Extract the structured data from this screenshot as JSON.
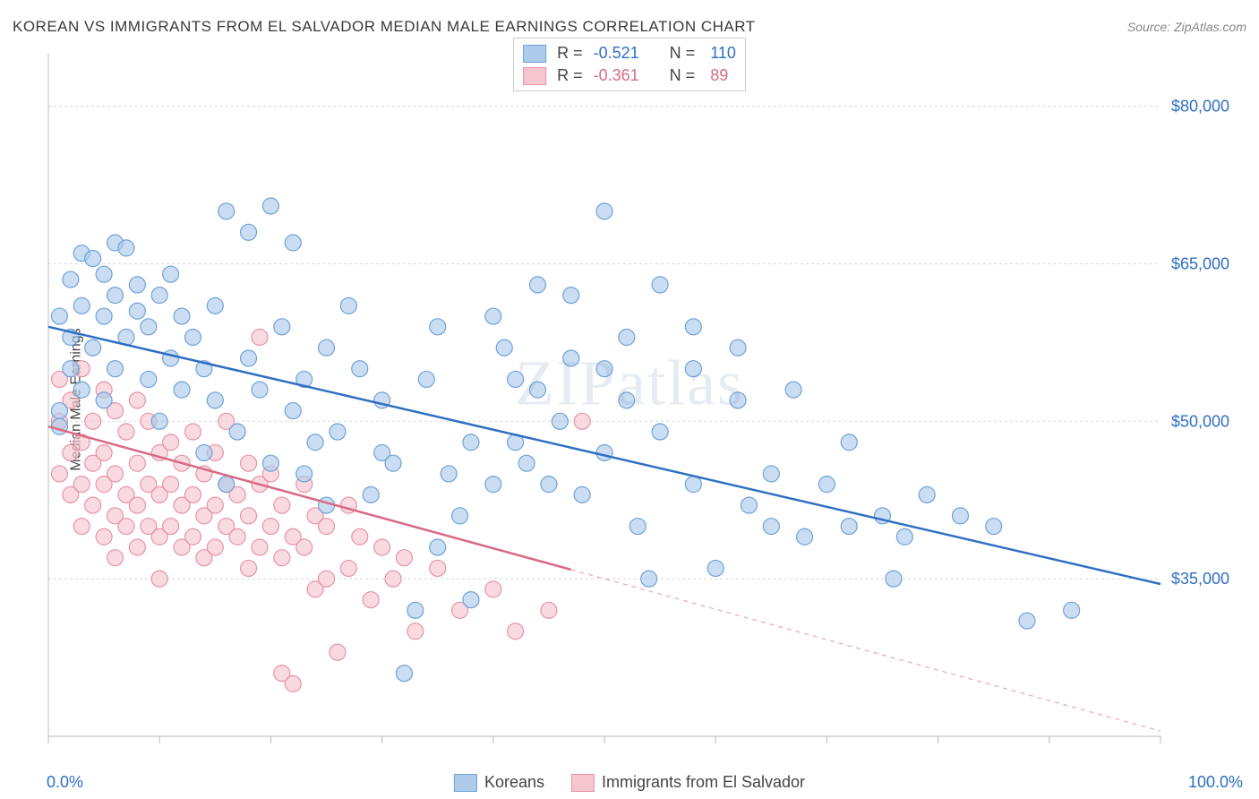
{
  "header": {
    "title": "KOREAN VS IMMIGRANTS FROM EL SALVADOR MEDIAN MALE EARNINGS CORRELATION CHART",
    "source": "Source: ZipAtlas.com"
  },
  "watermark": "ZIPatlas",
  "ylabel": "Median Male Earnings",
  "chart": {
    "type": "scatter",
    "xlim": [
      0,
      100
    ],
    "ylim": [
      20000,
      85000
    ],
    "x_axis_left_label": "0.0%",
    "x_axis_right_label": "100.0%",
    "y_ticks": [
      35000,
      50000,
      65000,
      80000
    ],
    "y_tick_labels": [
      "$35,000",
      "$50,000",
      "$65,000",
      "$80,000"
    ],
    "x_ticks": [
      0,
      10,
      20,
      30,
      40,
      50,
      60,
      70,
      80,
      90,
      100
    ],
    "grid_color": "#d8d8d8",
    "background_color": "#ffffff",
    "axis_color": "#bbbbbb",
    "marker_radius": 9,
    "marker_stroke_width": 1.2,
    "line_width": 2.5,
    "series": [
      {
        "name": "Koreans",
        "color_fill": "#aecbeb",
        "color_stroke": "#6fa3d8",
        "line_color": "#2f6fc2",
        "text_color": "#2f6fc2",
        "R": "-0.521",
        "N": "110",
        "regression": {
          "x1": 0,
          "y1": 59000,
          "x2": 100,
          "y2": 34500,
          "solid_until_x": 100
        },
        "points": [
          [
            1,
            60000
          ],
          [
            1,
            51000
          ],
          [
            1,
            49500
          ],
          [
            2,
            58000
          ],
          [
            2,
            55000
          ],
          [
            2,
            63500
          ],
          [
            3,
            66000
          ],
          [
            3,
            61000
          ],
          [
            3,
            53000
          ],
          [
            4,
            57000
          ],
          [
            4,
            65500
          ],
          [
            5,
            64000
          ],
          [
            5,
            60000
          ],
          [
            5,
            52000
          ],
          [
            6,
            55000
          ],
          [
            6,
            67000
          ],
          [
            6,
            62000
          ],
          [
            7,
            66500
          ],
          [
            7,
            58000
          ],
          [
            8,
            63000
          ],
          [
            8,
            60500
          ],
          [
            9,
            54000
          ],
          [
            9,
            59000
          ],
          [
            10,
            62000
          ],
          [
            10,
            50000
          ],
          [
            11,
            56000
          ],
          [
            11,
            64000
          ],
          [
            12,
            53000
          ],
          [
            12,
            60000
          ],
          [
            13,
            58000
          ],
          [
            14,
            55000
          ],
          [
            14,
            47000
          ],
          [
            15,
            61000
          ],
          [
            15,
            52000
          ],
          [
            16,
            70000
          ],
          [
            16,
            44000
          ],
          [
            17,
            49000
          ],
          [
            18,
            56000
          ],
          [
            18,
            68000
          ],
          [
            19,
            53000
          ],
          [
            20,
            70500
          ],
          [
            20,
            46000
          ],
          [
            21,
            59000
          ],
          [
            22,
            51000
          ],
          [
            22,
            67000
          ],
          [
            23,
            45000
          ],
          [
            23,
            54000
          ],
          [
            24,
            48000
          ],
          [
            25,
            57000
          ],
          [
            25,
            42000
          ],
          [
            26,
            49000
          ],
          [
            27,
            61000
          ],
          [
            28,
            55000
          ],
          [
            29,
            43000
          ],
          [
            30,
            47000
          ],
          [
            30,
            52000
          ],
          [
            31,
            46000
          ],
          [
            32,
            26000
          ],
          [
            33,
            32000
          ],
          [
            34,
            54000
          ],
          [
            35,
            38000
          ],
          [
            35,
            59000
          ],
          [
            36,
            45000
          ],
          [
            37,
            41000
          ],
          [
            38,
            48000
          ],
          [
            38,
            33000
          ],
          [
            40,
            44000
          ],
          [
            40,
            60000
          ],
          [
            41,
            57000
          ],
          [
            42,
            48000
          ],
          [
            42,
            54000
          ],
          [
            43,
            46000
          ],
          [
            44,
            53000
          ],
          [
            44,
            63000
          ],
          [
            45,
            44000
          ],
          [
            46,
            50000
          ],
          [
            47,
            56000
          ],
          [
            47,
            62000
          ],
          [
            48,
            43000
          ],
          [
            50,
            47000
          ],
          [
            50,
            55000
          ],
          [
            50,
            70000
          ],
          [
            52,
            52000
          ],
          [
            52,
            58000
          ],
          [
            53,
            40000
          ],
          [
            54,
            35000
          ],
          [
            55,
            49000
          ],
          [
            55,
            63000
          ],
          [
            58,
            44000
          ],
          [
            58,
            55000
          ],
          [
            58,
            59000
          ],
          [
            60,
            36000
          ],
          [
            62,
            52000
          ],
          [
            62,
            57000
          ],
          [
            63,
            42000
          ],
          [
            65,
            45000
          ],
          [
            65,
            40000
          ],
          [
            67,
            53000
          ],
          [
            68,
            39000
          ],
          [
            70,
            44000
          ],
          [
            72,
            48000
          ],
          [
            72,
            40000
          ],
          [
            75,
            41000
          ],
          [
            76,
            35000
          ],
          [
            77,
            39000
          ],
          [
            79,
            43000
          ],
          [
            82,
            41000
          ],
          [
            85,
            40000
          ],
          [
            88,
            31000
          ],
          [
            92,
            32000
          ]
        ]
      },
      {
        "name": "Immigrants from El Salvador",
        "color_fill": "#f4c6cf",
        "color_stroke": "#e794a5",
        "line_color": "#d96a86",
        "text_color": "#d96a86",
        "R": "-0.361",
        "N": "89",
        "regression": {
          "x1": 0,
          "y1": 49500,
          "x2": 100,
          "y2": 20500,
          "solid_until_x": 47
        },
        "points": [
          [
            1,
            54000
          ],
          [
            1,
            50000
          ],
          [
            1,
            45000
          ],
          [
            2,
            52000
          ],
          [
            2,
            47000
          ],
          [
            2,
            43000
          ],
          [
            3,
            55000
          ],
          [
            3,
            48000
          ],
          [
            3,
            44000
          ],
          [
            3,
            40000
          ],
          [
            4,
            50000
          ],
          [
            4,
            46000
          ],
          [
            4,
            42000
          ],
          [
            5,
            53000
          ],
          [
            5,
            47000
          ],
          [
            5,
            44000
          ],
          [
            5,
            39000
          ],
          [
            6,
            51000
          ],
          [
            6,
            45000
          ],
          [
            6,
            41000
          ],
          [
            6,
            37000
          ],
          [
            7,
            49000
          ],
          [
            7,
            43000
          ],
          [
            7,
            40000
          ],
          [
            8,
            52000
          ],
          [
            8,
            46000
          ],
          [
            8,
            42000
          ],
          [
            8,
            38000
          ],
          [
            9,
            50000
          ],
          [
            9,
            44000
          ],
          [
            9,
            40000
          ],
          [
            10,
            47000
          ],
          [
            10,
            43000
          ],
          [
            10,
            39000
          ],
          [
            10,
            35000
          ],
          [
            11,
            48000
          ],
          [
            11,
            44000
          ],
          [
            11,
            40000
          ],
          [
            12,
            46000
          ],
          [
            12,
            42000
          ],
          [
            12,
            38000
          ],
          [
            13,
            49000
          ],
          [
            13,
            43000
          ],
          [
            13,
            39000
          ],
          [
            14,
            45000
          ],
          [
            14,
            41000
          ],
          [
            14,
            37000
          ],
          [
            15,
            47000
          ],
          [
            15,
            42000
          ],
          [
            15,
            38000
          ],
          [
            16,
            50000
          ],
          [
            16,
            44000
          ],
          [
            16,
            40000
          ],
          [
            17,
            43000
          ],
          [
            17,
            39000
          ],
          [
            18,
            46000
          ],
          [
            18,
            41000
          ],
          [
            18,
            36000
          ],
          [
            19,
            58000
          ],
          [
            19,
            44000
          ],
          [
            19,
            38000
          ],
          [
            20,
            45000
          ],
          [
            20,
            40000
          ],
          [
            21,
            42000
          ],
          [
            21,
            37000
          ],
          [
            21,
            26000
          ],
          [
            22,
            39000
          ],
          [
            22,
            25000
          ],
          [
            23,
            44000
          ],
          [
            23,
            38000
          ],
          [
            24,
            41000
          ],
          [
            24,
            34000
          ],
          [
            25,
            40000
          ],
          [
            25,
            35000
          ],
          [
            26,
            28000
          ],
          [
            27,
            42000
          ],
          [
            27,
            36000
          ],
          [
            28,
            39000
          ],
          [
            29,
            33000
          ],
          [
            30,
            38000
          ],
          [
            31,
            35000
          ],
          [
            32,
            37000
          ],
          [
            33,
            30000
          ],
          [
            35,
            36000
          ],
          [
            37,
            32000
          ],
          [
            40,
            34000
          ],
          [
            42,
            30000
          ],
          [
            45,
            32000
          ],
          [
            48,
            50000
          ]
        ]
      }
    ],
    "stats_labels": {
      "R": "R =",
      "N": "N ="
    },
    "legend_position": "bottom-center",
    "axis_label_fontsize": 16,
    "tick_label_fontsize": 18,
    "title_fontsize": 17
  }
}
